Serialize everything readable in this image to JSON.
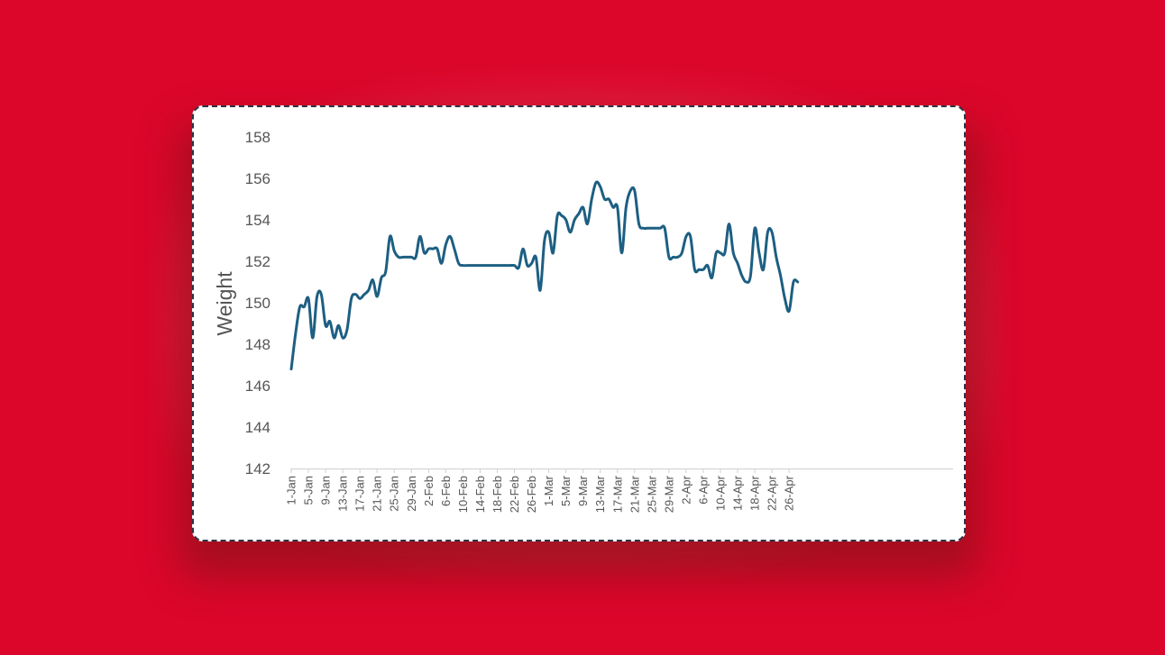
{
  "chart_data": {
    "type": "line",
    "title": "",
    "xlabel": "",
    "ylabel": "Weight",
    "ylim": [
      142,
      158
    ],
    "yticks": [
      142,
      144,
      146,
      148,
      150,
      152,
      154,
      156,
      158
    ],
    "grid": false,
    "legend": "none",
    "line_color": "#1d5f82",
    "x_tick_labels": [
      "1-Jan",
      "5-Jan",
      "9-Jan",
      "13-Jan",
      "17-Jan",
      "21-Jan",
      "25-Jan",
      "29-Jan",
      "2-Feb",
      "6-Feb",
      "10-Feb",
      "14-Feb",
      "18-Feb",
      "22-Feb",
      "26-Feb",
      "1-Mar",
      "5-Mar",
      "9-Mar",
      "13-Mar",
      "17-Mar",
      "21-Mar",
      "25-Mar",
      "29-Mar",
      "2-Apr",
      "6-Apr",
      "10-Apr",
      "14-Apr",
      "18-Apr",
      "22-Apr",
      "26-Apr"
    ],
    "x_start": "1-Jan",
    "series": [
      {
        "values": [
          146.8,
          148.5,
          149.8,
          149.8,
          150.2,
          148.3,
          150.3,
          150.4,
          148.9,
          149.1,
          148.3,
          148.9,
          148.3,
          148.7,
          150.2,
          150.4,
          150.2,
          150.4,
          150.6,
          151.1,
          150.3,
          151.2,
          151.5,
          153.2,
          152.5,
          152.2,
          152.2,
          152.2,
          152.2,
          152.2,
          153.2,
          152.4,
          152.6,
          152.6,
          152.6,
          151.9,
          152.8,
          153.2,
          152.6,
          151.9,
          151.8,
          151.8,
          151.8,
          151.8,
          151.8,
          151.8,
          151.8,
          151.8,
          151.8,
          151.8,
          151.8,
          151.8,
          151.8,
          151.7,
          152.6,
          151.8,
          151.9,
          152.2,
          150.6,
          153.0,
          153.4,
          152.4,
          154.2,
          154.2,
          154.0,
          153.4,
          154.0,
          154.3,
          154.6,
          153.8,
          155.0,
          155.8,
          155.6,
          155.0,
          155.0,
          154.6,
          154.6,
          152.4,
          154.6,
          155.4,
          155.4,
          153.8,
          153.6,
          153.6,
          153.6,
          153.6,
          153.6,
          153.6,
          152.2,
          152.2,
          152.2,
          152.4,
          153.2,
          153.2,
          151.6,
          151.6,
          151.6,
          151.8,
          151.2,
          152.4,
          152.4,
          152.4,
          153.8,
          152.4,
          151.9,
          151.3,
          151.0,
          151.3,
          153.6,
          152.4,
          151.6,
          153.4,
          153.4,
          152.2,
          151.3,
          150.2,
          149.6,
          151.0,
          151.0
        ]
      }
    ]
  }
}
